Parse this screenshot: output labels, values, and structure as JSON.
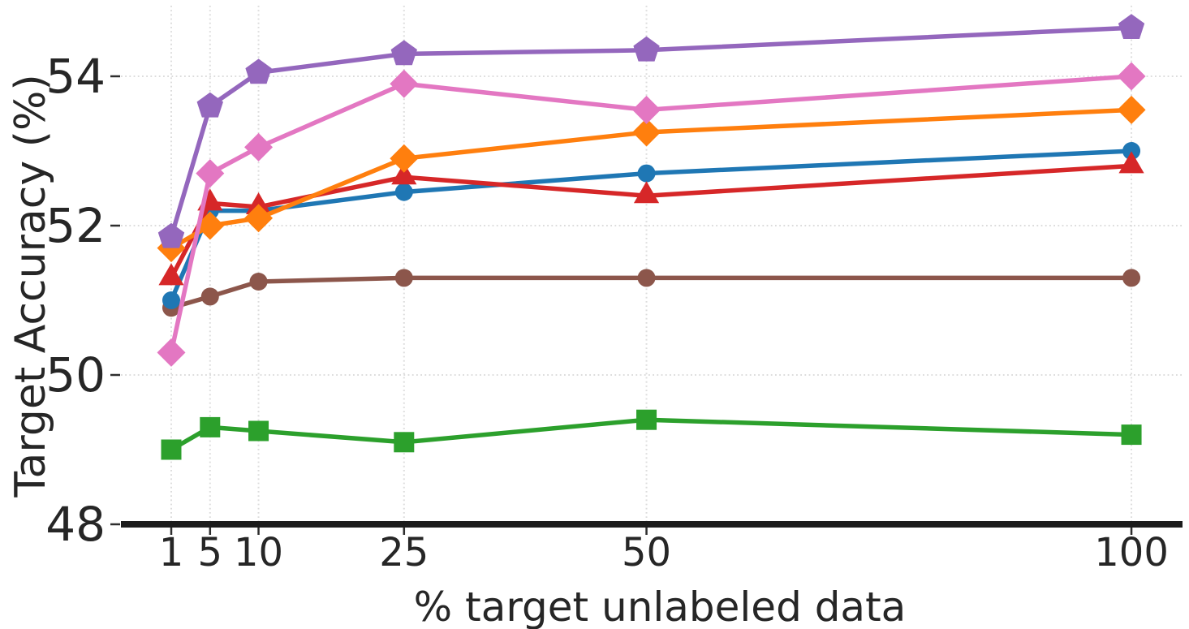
{
  "chart_data": {
    "type": "line",
    "title": "",
    "xlabel": "% target unlabeled data",
    "ylabel": "Target Accuracy (%)",
    "x_scale": "linear",
    "x": [
      1,
      5,
      10,
      25,
      50,
      100
    ],
    "x_tick_labels": [
      "1",
      "5",
      "10",
      "25",
      "50",
      "100"
    ],
    "y_ticks": [
      48,
      50,
      52,
      54
    ],
    "y_tick_labels": [
      "48",
      "50",
      "52",
      "54"
    ],
    "xlim": [
      -4.2,
      104
    ],
    "ylim": [
      48,
      55.0
    ],
    "grid": "both-dotted",
    "legend": "none",
    "colors": {
      "grid": "#dcdcdc",
      "spine": "#1c1c1c",
      "tick": "#2e2e2e",
      "text": "#262626",
      "background": "#ffffff"
    },
    "series": [
      {
        "id": "green-square",
        "marker": "square",
        "color": "#2ca02c",
        "values": [
          49.0,
          49.3,
          49.25,
          49.1,
          49.4,
          49.2
        ]
      },
      {
        "id": "brown-circle",
        "marker": "circle",
        "color": "#8c564b",
        "values": [
          50.9,
          51.05,
          51.25,
          51.3,
          51.3,
          51.3
        ]
      },
      {
        "id": "blue-circle",
        "marker": "circle",
        "color": "#1f77b4",
        "values": [
          51.0,
          52.2,
          52.2,
          52.45,
          52.7,
          53.0
        ]
      },
      {
        "id": "red-triangle",
        "marker": "triangle",
        "color": "#d62728",
        "values": [
          51.3,
          52.3,
          52.25,
          52.65,
          52.4,
          52.8
        ]
      },
      {
        "id": "orange-diamond",
        "marker": "diamond",
        "color": "#ff7f0e",
        "values": [
          51.7,
          52.0,
          52.1,
          52.9,
          53.25,
          53.55
        ]
      },
      {
        "id": "pink-diamond",
        "marker": "diamond",
        "color": "#e377c2",
        "values": [
          50.3,
          52.7,
          53.05,
          53.9,
          53.55,
          54.0
        ]
      },
      {
        "id": "purple-pentagon",
        "marker": "pentagon",
        "color": "#9467bd",
        "values": [
          51.85,
          53.6,
          54.05,
          54.3,
          54.35,
          54.65
        ]
      }
    ]
  }
}
